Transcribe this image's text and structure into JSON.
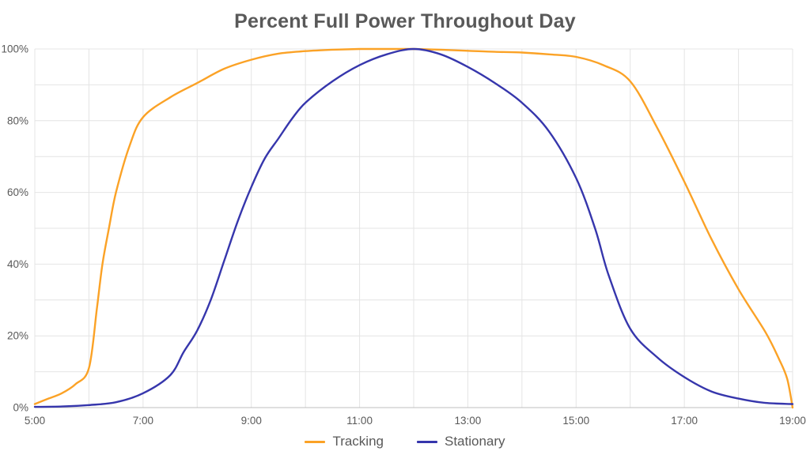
{
  "chart": {
    "title": "Percent Full Power Throughout Day",
    "legend": [
      {
        "name": "Tracking",
        "color": "#FBA226"
      },
      {
        "name": "Stationary",
        "color": "#3636AC"
      }
    ]
  },
  "chart_data": {
    "type": "line",
    "title": "Percent Full Power Throughout Day",
    "xlabel": "",
    "ylabel": "",
    "grid": true,
    "legend_position": "bottom",
    "x_axis": {
      "min": 5,
      "max": 19,
      "unit": "time of day (hours)",
      "tick_hours": [
        5,
        7,
        9,
        11,
        13,
        15,
        17,
        19
      ],
      "tick_labels": [
        "5:00",
        "7:00",
        "9:00",
        "11:00",
        "13:00",
        "15:00",
        "17:00",
        "19:00"
      ],
      "gridline_every_hours": 1
    },
    "y_axis": {
      "min": 0,
      "max": 100,
      "unit": "percent full power",
      "tick_values": [
        0,
        20,
        40,
        60,
        80,
        100
      ],
      "tick_labels": [
        "0%",
        "20%",
        "40%",
        "60%",
        "80%",
        "100%"
      ],
      "gridline_every_percent": 10
    },
    "series": [
      {
        "name": "Tracking",
        "color": "#FBA226",
        "points": [
          [
            5.0,
            1
          ],
          [
            5.25,
            2.5
          ],
          [
            5.5,
            4
          ],
          [
            5.75,
            6.5
          ],
          [
            6.0,
            11
          ],
          [
            6.15,
            28
          ],
          [
            6.25,
            40
          ],
          [
            6.37,
            50
          ],
          [
            6.5,
            60
          ],
          [
            6.75,
            73
          ],
          [
            7.0,
            81
          ],
          [
            7.5,
            86.5
          ],
          [
            8.0,
            90.5
          ],
          [
            8.5,
            94.5
          ],
          [
            9.0,
            97
          ],
          [
            9.5,
            98.7
          ],
          [
            10.0,
            99.4
          ],
          [
            10.5,
            99.8
          ],
          [
            11.0,
            100
          ],
          [
            11.5,
            100
          ],
          [
            12.0,
            100
          ],
          [
            12.5,
            99.8
          ],
          [
            13.0,
            99.5
          ],
          [
            13.5,
            99.2
          ],
          [
            14.0,
            99
          ],
          [
            14.5,
            98.5
          ],
          [
            15.0,
            97.8
          ],
          [
            15.5,
            95.5
          ],
          [
            16.0,
            91
          ],
          [
            16.5,
            78
          ],
          [
            17.0,
            63
          ],
          [
            17.5,
            47
          ],
          [
            18.0,
            33
          ],
          [
            18.5,
            21
          ],
          [
            18.75,
            13.5
          ],
          [
            18.9,
            8
          ],
          [
            19.0,
            0
          ]
        ]
      },
      {
        "name": "Stationary",
        "color": "#3636AC",
        "points": [
          [
            5.0,
            0.2
          ],
          [
            5.5,
            0.3
          ],
          [
            6.0,
            0.7
          ],
          [
            6.5,
            1.5
          ],
          [
            7.0,
            4
          ],
          [
            7.5,
            9
          ],
          [
            7.75,
            15.5
          ],
          [
            8.0,
            21.5
          ],
          [
            8.25,
            30
          ],
          [
            8.5,
            41
          ],
          [
            8.75,
            52
          ],
          [
            9.0,
            61.5
          ],
          [
            9.25,
            69.5
          ],
          [
            9.5,
            75
          ],
          [
            9.75,
            80.5
          ],
          [
            10.0,
            85
          ],
          [
            10.5,
            91
          ],
          [
            11.0,
            95.5
          ],
          [
            11.5,
            98.5
          ],
          [
            12.0,
            100
          ],
          [
            12.5,
            98.5
          ],
          [
            13.0,
            95
          ],
          [
            13.5,
            90.5
          ],
          [
            14.0,
            85
          ],
          [
            14.5,
            77
          ],
          [
            15.0,
            64
          ],
          [
            15.35,
            50
          ],
          [
            15.6,
            37
          ],
          [
            16.0,
            22
          ],
          [
            16.5,
            14
          ],
          [
            17.0,
            8.5
          ],
          [
            17.5,
            4.5
          ],
          [
            18.0,
            2.5
          ],
          [
            18.5,
            1.3
          ],
          [
            19.0,
            1
          ]
        ]
      }
    ],
    "style": {
      "gridline_color": "#E4E4E4",
      "axis_line_color": "#BFBFBF",
      "text_color": "#595959",
      "line_width": 2.4
    }
  }
}
